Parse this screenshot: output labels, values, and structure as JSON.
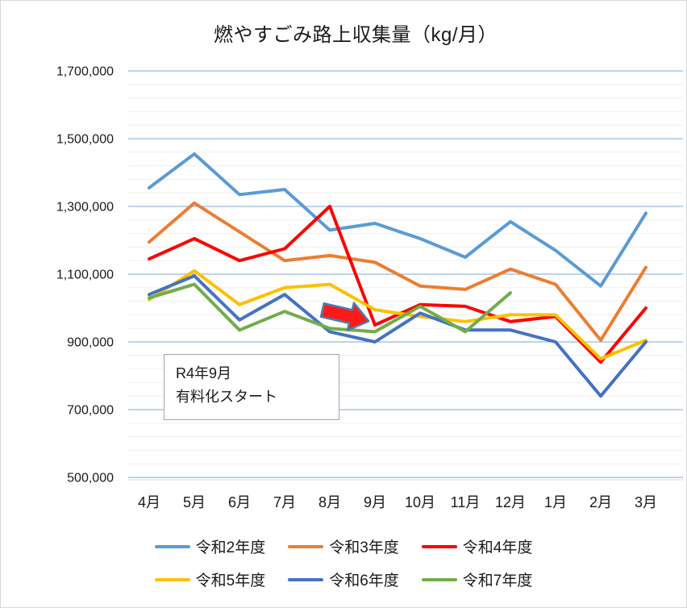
{
  "chart_data": {
    "type": "line",
    "title": "燃やすごみ路上収集量（kg/月）",
    "categories": [
      "4月",
      "5月",
      "6月",
      "7月",
      "8月",
      "9月",
      "10月",
      "11月",
      "12月",
      "1月",
      "2月",
      "3月"
    ],
    "y_axis": {
      "min": 500000,
      "max": 1700000,
      "major_unit": 200000,
      "minor_unit": 40000,
      "tick_labels": [
        "1,700,000",
        "1,500,000",
        "1,300,000",
        "1,100,000",
        "900,000",
        "700,000",
        "500,000"
      ]
    },
    "grid": {
      "major_gridlines": true,
      "minor_gridlines": true
    },
    "legend_position": "bottom",
    "series": [
      {
        "name": "令和2年度",
        "color": "#5B9BD5",
        "values": [
          1355000,
          1455000,
          1335000,
          1350000,
          1230000,
          1250000,
          1205000,
          1150000,
          1255000,
          1170000,
          1065000,
          1280000
        ]
      },
      {
        "name": "令和3年度",
        "color": "#ED7D31",
        "values": [
          1195000,
          1310000,
          1225000,
          1140000,
          1155000,
          1135000,
          1065000,
          1055000,
          1115000,
          1070000,
          905000,
          1120000
        ]
      },
      {
        "name": "令和4年度",
        "color": "#FF0000",
        "values": [
          1145000,
          1205000,
          1140000,
          1175000,
          1300000,
          950000,
          1010000,
          1005000,
          960000,
          975000,
          840000,
          1000000
        ]
      },
      {
        "name": "令和5年度",
        "color": "#FFC000",
        "values": [
          1025000,
          1110000,
          1010000,
          1060000,
          1070000,
          995000,
          975000,
          960000,
          980000,
          980000,
          850000,
          905000
        ]
      },
      {
        "name": "令和6年度",
        "color": "#4472C4",
        "values": [
          1040000,
          1095000,
          965000,
          1040000,
          930000,
          900000,
          985000,
          935000,
          935000,
          900000,
          740000,
          900000
        ]
      },
      {
        "name": "令和7年度",
        "color": "#70AD47",
        "values": [
          1030000,
          1070000,
          935000,
          990000,
          940000,
          930000,
          1005000,
          930000,
          1045000
        ]
      }
    ],
    "annotation": {
      "line1": "R4年9月",
      "line2": "有料化スタート"
    },
    "arrow": {
      "meaning": "points at 令和4年度 9月 drop",
      "fill": "#FF1A1A",
      "outline": "#4E7CB0"
    }
  },
  "colors": {
    "major_gridline": "#7FA8D4",
    "minor_gridline": "#EFEFEF",
    "axis_line": "#D9D9D9",
    "text": "#1A1A1A"
  }
}
